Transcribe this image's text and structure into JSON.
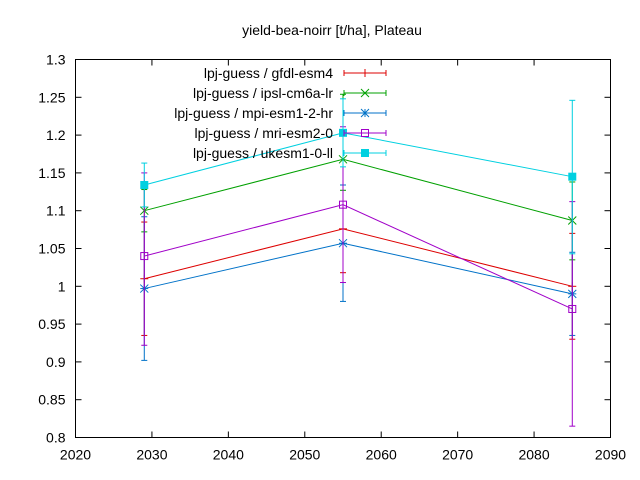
{
  "chart_data": {
    "type": "line",
    "title": "yield-bea-noirr [t/ha], Plateau",
    "xlabel": "",
    "ylabel": "",
    "xlim": [
      2020,
      2090
    ],
    "ylim": [
      0.8,
      1.3
    ],
    "x_ticks": [
      2020,
      2030,
      2040,
      2050,
      2060,
      2070,
      2080,
      2090
    ],
    "y_ticks": [
      0.8,
      0.85,
      0.9,
      0.95,
      1,
      1.05,
      1.1,
      1.15,
      1.2,
      1.25,
      1.3
    ],
    "x": [
      2029,
      2055,
      2085
    ],
    "legend_position": "top-center",
    "grid": false,
    "series": [
      {
        "name": "lpj-guess / gfdl-esm4",
        "color": "#dd0000",
        "marker": "plus",
        "values": [
          1.01,
          1.076,
          1.0
        ],
        "err_low": [
          0.935,
          1.018,
          0.93
        ],
        "err_high": [
          1.085,
          1.134,
          1.07
        ]
      },
      {
        "name": "lpj-guess / ipsl-cm6a-lr",
        "color": "#00a000",
        "marker": "cross",
        "values": [
          1.1,
          1.168,
          1.087
        ],
        "err_low": [
          1.072,
          1.127,
          1.035
        ],
        "err_high": [
          1.128,
          1.254,
          1.138
        ]
      },
      {
        "name": "lpj-guess / mpi-esm1-2-hr",
        "color": "#0072c8",
        "marker": "star",
        "values": [
          0.997,
          1.057,
          0.99
        ],
        "err_low": [
          0.902,
          0.98,
          0.935
        ],
        "err_high": [
          1.092,
          1.134,
          1.045
        ]
      },
      {
        "name": "lpj-guess / mri-esm2-0",
        "color": "#a000c8",
        "marker": "square-open",
        "values": [
          1.04,
          1.108,
          0.97
        ],
        "err_low": [
          0.922,
          1.005,
          0.815
        ],
        "err_high": [
          1.15,
          1.211,
          1.112
        ]
      },
      {
        "name": "lpj-guess / ukesm1-0-ll",
        "color": "#00d0e0",
        "marker": "square-filled",
        "values": [
          1.134,
          1.203,
          1.145
        ],
        "err_low": [
          1.105,
          1.158,
          1.043
        ],
        "err_high": [
          1.163,
          1.248,
          1.246
        ]
      }
    ]
  }
}
